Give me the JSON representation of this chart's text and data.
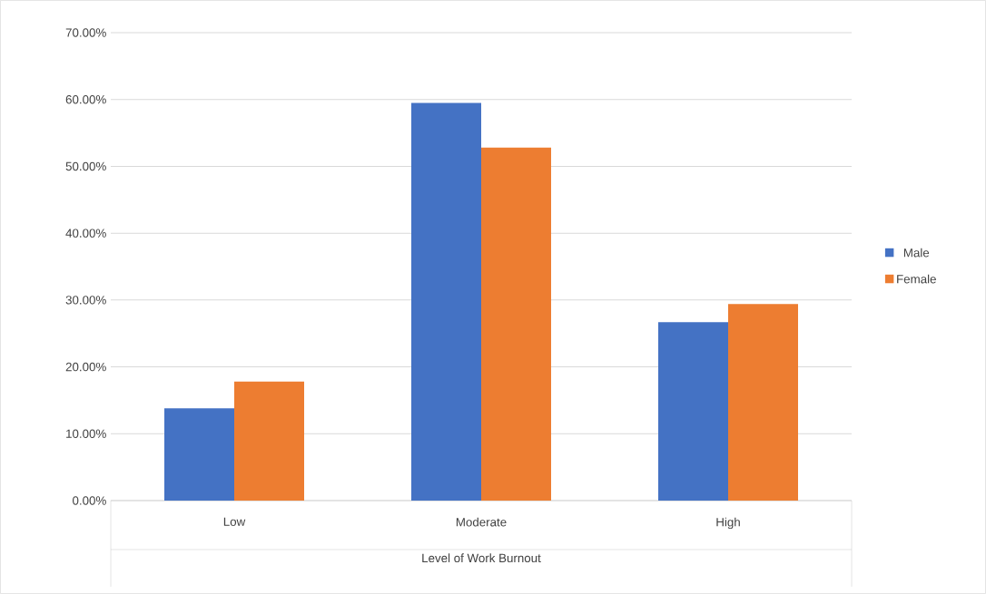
{
  "chart_data": {
    "type": "bar",
    "xlabel": "Level of Work Burnout",
    "categories": [
      "Low",
      "Moderate",
      "High"
    ],
    "series": [
      {
        "name": "Male",
        "color": "#4472c4",
        "values": [
          13.8,
          59.5,
          26.7
        ]
      },
      {
        "name": "Female",
        "color": "#ed7d31",
        "values": [
          17.8,
          52.8,
          29.4
        ]
      }
    ],
    "ylim": [
      0,
      70
    ],
    "yticks": [
      {
        "value": 0,
        "label": "0.00%"
      },
      {
        "value": 10,
        "label": "10.00%"
      },
      {
        "value": 20,
        "label": "20.00%"
      },
      {
        "value": 30,
        "label": "30.00%"
      },
      {
        "value": 40,
        "label": "40.00%"
      },
      {
        "value": 50,
        "label": "50.00%"
      },
      {
        "value": 60,
        "label": "60.00%"
      },
      {
        "value": 70,
        "label": "70.00%"
      }
    ],
    "grid": "y",
    "legend": "right"
  }
}
